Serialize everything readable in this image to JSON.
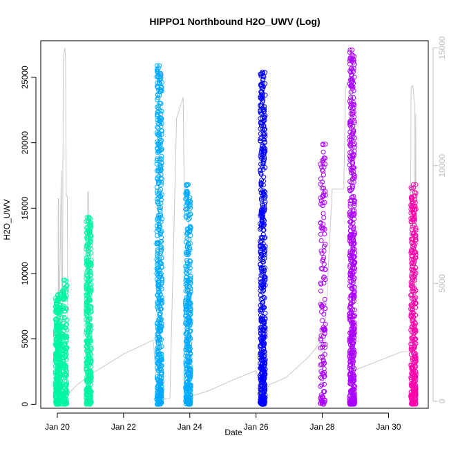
{
  "chart_data": {
    "type": "scatter",
    "title": "HIPPO1 Northbound H2O_UWV (Log)",
    "xlabel": "Date",
    "ylabel": "H2O_UWV",
    "x_unit": "days (January)",
    "xlim": [
      19.5,
      31.2
    ],
    "ylim": [
      -300,
      27800
    ],
    "right_ylim": [
      -300,
      15300
    ],
    "x_ticks": [
      {
        "value": 20,
        "label": "Jan 20"
      },
      {
        "value": 22,
        "label": "Jan 22"
      },
      {
        "value": 24,
        "label": "Jan 24"
      },
      {
        "value": 26,
        "label": "Jan 26"
      },
      {
        "value": 28,
        "label": "Jan 28"
      },
      {
        "value": 30,
        "label": "Jan 30"
      }
    ],
    "y_ticks": [
      0,
      5000,
      10000,
      15000,
      20000,
      25000
    ],
    "right_y_ticks": [
      0,
      5000,
      10000,
      15000
    ],
    "colors": {
      "flight1": "#00f5a0",
      "flight2": "#00aaff",
      "flight3": "#0000ff",
      "flight4": "#aa00ff",
      "flight5": "#ff00aa",
      "trace": "#c8c8c8"
    },
    "series": [
      {
        "color": "#00f5a0",
        "strips": [
          {
            "x": 20.02,
            "ymin": 0,
            "ymax": 8400,
            "density": 360
          },
          {
            "x": 20.22,
            "ymin": 0,
            "ymax": 9500,
            "density": 180
          },
          {
            "x": 20.95,
            "ymin": 0,
            "ymax": 14300,
            "density": 360
          }
        ]
      },
      {
        "color": "#00aaff",
        "strips": [
          {
            "x": 23.08,
            "ymin": 0,
            "ymax": 25900,
            "density": 450
          },
          {
            "x": 23.95,
            "ymin": 0,
            "ymax": 16800,
            "density": 360
          }
        ]
      },
      {
        "color": "#0000ff",
        "strips": [
          {
            "x": 26.2,
            "ymin": 0,
            "ymax": 25400,
            "density": 500
          }
        ]
      },
      {
        "color": "#aa00ff",
        "strips": [
          {
            "x": 28.02,
            "ymin": 0,
            "ymax": 19900,
            "density": 140
          },
          {
            "x": 28.9,
            "ymin": 0,
            "ymax": 27100,
            "density": 500
          }
        ]
      },
      {
        "color": "#ff00aa",
        "strips": [
          {
            "x": 30.75,
            "ymin": 0,
            "ymax": 16800,
            "density": 320
          }
        ]
      }
    ],
    "trace": [
      [
        20.02,
        0
      ],
      [
        20.03,
        8600
      ],
      [
        20.04,
        8600
      ],
      [
        20.05,
        1200
      ],
      [
        20.08,
        5500
      ],
      [
        20.12,
        9800
      ],
      [
        20.15,
        2200
      ],
      [
        20.18,
        14400
      ],
      [
        20.2,
        14800
      ],
      [
        20.23,
        15000
      ],
      [
        20.25,
        14500
      ],
      [
        20.27,
        8700
      ],
      [
        20.3,
        8700
      ],
      [
        20.32,
        300
      ],
      [
        20.6,
        700
      ],
      [
        20.9,
        1000
      ],
      [
        20.92,
        8900
      ],
      [
        20.94,
        8900
      ],
      [
        20.96,
        1100
      ],
      [
        22.0,
        2000
      ],
      [
        22.9,
        2600
      ],
      [
        23.02,
        100
      ],
      [
        23.15,
        100
      ],
      [
        23.4,
        100
      ],
      [
        23.6,
        12000
      ],
      [
        23.8,
        12900
      ],
      [
        23.83,
        9000
      ],
      [
        23.86,
        9000
      ],
      [
        23.95,
        9000
      ],
      [
        24.0,
        200
      ],
      [
        24.5,
        400
      ],
      [
        25.3,
        900
      ],
      [
        26.0,
        1300
      ],
      [
        26.2,
        200
      ],
      [
        26.4,
        700
      ],
      [
        26.9,
        1000
      ],
      [
        27.6,
        1900
      ],
      [
        28.0,
        2600
      ],
      [
        28.02,
        1000
      ],
      [
        28.3,
        9000
      ],
      [
        28.65,
        9000
      ],
      [
        28.7,
        13200
      ],
      [
        28.75,
        13500
      ],
      [
        28.85,
        14000
      ],
      [
        28.95,
        1300
      ],
      [
        29.5,
        1600
      ],
      [
        30.4,
        2100
      ],
      [
        30.65,
        2100
      ],
      [
        30.68,
        13300
      ],
      [
        30.72,
        13400
      ],
      [
        30.75,
        13200
      ],
      [
        30.78,
        12600
      ],
      [
        30.8,
        2200
      ],
      [
        30.82,
        12200
      ],
      [
        30.85,
        1500
      ]
    ]
  }
}
